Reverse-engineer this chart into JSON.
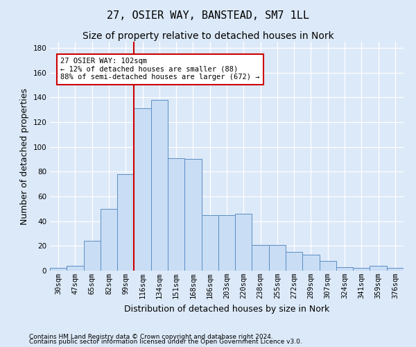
{
  "title": "27, OSIER WAY, BANSTEAD, SM7 1LL",
  "subtitle": "Size of property relative to detached houses in Nork",
  "xlabel": "Distribution of detached houses by size in Nork",
  "ylabel": "Number of detached properties",
  "footnote1": "Contains HM Land Registry data © Crown copyright and database right 2024.",
  "footnote2": "Contains public sector information licensed under the Open Government Licence v3.0.",
  "bar_labels": [
    "30sqm",
    "47sqm",
    "65sqm",
    "82sqm",
    "99sqm",
    "116sqm",
    "134sqm",
    "151sqm",
    "168sqm",
    "186sqm",
    "203sqm",
    "220sqm",
    "238sqm",
    "255sqm",
    "272sqm",
    "289sqm",
    "307sqm",
    "324sqm",
    "341sqm",
    "359sqm",
    "376sqm"
  ],
  "bar_values": [
    2,
    4,
    24,
    50,
    78,
    131,
    138,
    91,
    90,
    45,
    45,
    46,
    21,
    21,
    15,
    13,
    8,
    3,
    2,
    4,
    2
  ],
  "bar_color": "#c9ddf5",
  "bar_edge_color": "#5b8ec4",
  "vline_x_idx": 4,
  "vline_color": "#cc0000",
  "annotation_text": "27 OSIER WAY: 102sqm\n← 12% of detached houses are smaller (88)\n88% of semi-detached houses are larger (672) →",
  "annotation_box_color": "#ffffff",
  "annotation_box_edge": "#cc0000",
  "ylim": [
    0,
    185
  ],
  "yticks": [
    0,
    20,
    40,
    60,
    80,
    100,
    120,
    140,
    160,
    180
  ],
  "bg_color": "#dce9f8",
  "plot_bg_color": "#dce9f8",
  "grid_color": "#ffffff",
  "title_fontsize": 11,
  "subtitle_fontsize": 10,
  "tick_fontsize": 7.5,
  "ylabel_fontsize": 9,
  "xlabel_fontsize": 9,
  "annot_fontsize": 7.5
}
